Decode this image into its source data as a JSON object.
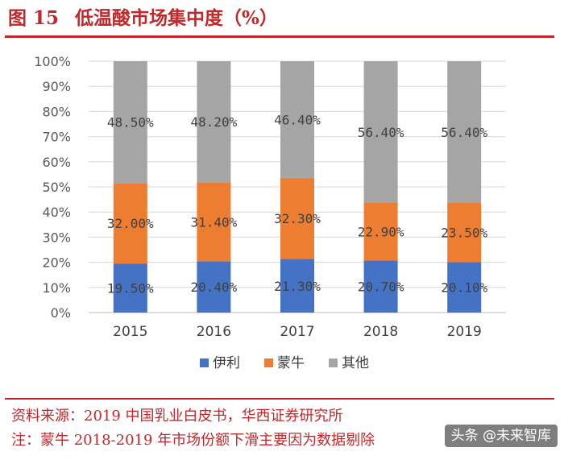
{
  "header": {
    "figure_label": "图 15",
    "title": "低温酸市场集中度（%）"
  },
  "colors": {
    "accent": "#c0282c",
    "yili": "#4472c4",
    "mengniu": "#ed7d31",
    "other": "#a5a5a5"
  },
  "chart_data": {
    "type": "bar",
    "stacked": true,
    "stack_mode": "percent",
    "title": "低温酸市场集中度（%）",
    "categories": [
      "2015",
      "2016",
      "2017",
      "2018",
      "2019"
    ],
    "series": [
      {
        "name": "伊利",
        "values": [
          19.5,
          20.4,
          21.3,
          20.7,
          20.1
        ],
        "labels": [
          "19.50%",
          "20.40%",
          "21.30%",
          "20.70%",
          "20.10%"
        ]
      },
      {
        "name": "蒙牛",
        "values": [
          32.0,
          31.4,
          32.3,
          22.9,
          23.5
        ],
        "labels": [
          "32.00%",
          "31.40%",
          "32.30%",
          "22.90%",
          "23.50%"
        ]
      },
      {
        "name": "其他",
        "values": [
          48.5,
          48.2,
          46.4,
          56.4,
          56.4
        ],
        "labels": [
          "48.50%",
          "48.20%",
          "46.40%",
          "56.40%",
          "56.40%"
        ]
      }
    ],
    "y_ticks": [
      "0%",
      "10%",
      "20%",
      "30%",
      "40%",
      "50%",
      "60%",
      "70%",
      "80%",
      "90%",
      "100%"
    ],
    "ylim": [
      0,
      100
    ],
    "grid": true,
    "legend_position": "bottom"
  },
  "footer": {
    "source": "资料来源：2019 中国乳业白皮书，华西证券研究所",
    "note": "注：蒙牛 2018-2019 年市场份额下滑主要因为数据剔除",
    "watermark": "头条 @未来智库"
  }
}
